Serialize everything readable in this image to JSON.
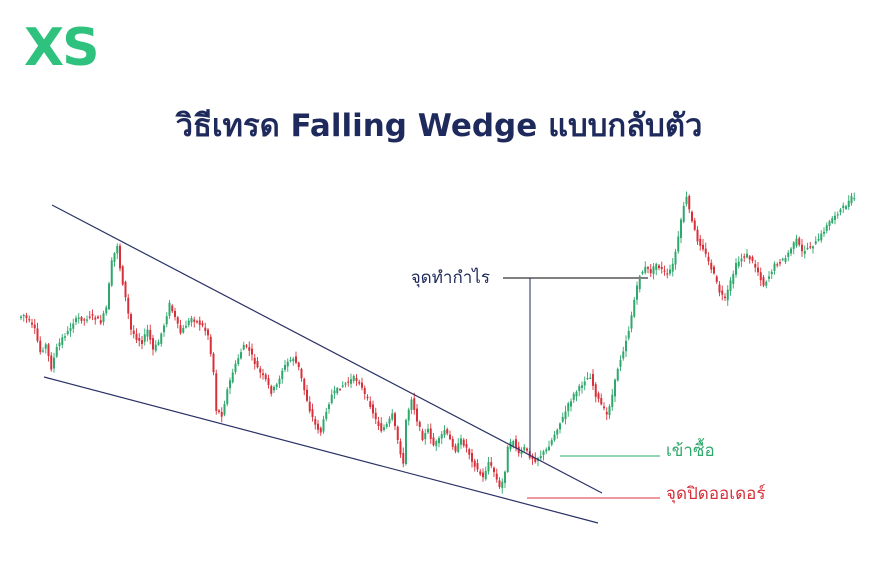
{
  "brand": {
    "logo_text": "XS",
    "logo_color": "#2ec27e"
  },
  "title": "วิธีเทรด Falling Wedge แบบกลับตัว",
  "colors": {
    "title": "#1f2a5c",
    "bull": "#2ea86b",
    "bear": "#d8303a",
    "wedge_line": "#2b3266",
    "take_profit": "#1f2a5c",
    "entry": "#2ea86b",
    "stop_loss": "#d8303a"
  },
  "chart_data": {
    "type": "line",
    "title": "",
    "xlabel": "",
    "ylabel": "",
    "grid": false,
    "price_path": [
      [
        0,
        318
      ],
      [
        2,
        315
      ],
      [
        4,
        322
      ],
      [
        6,
        330
      ],
      [
        8,
        352
      ],
      [
        10,
        345
      ],
      [
        12,
        368
      ],
      [
        14,
        348
      ],
      [
        16,
        338
      ],
      [
        18,
        332
      ],
      [
        20,
        322
      ],
      [
        22,
        318
      ],
      [
        24,
        320
      ],
      [
        26,
        316
      ],
      [
        28,
        318
      ],
      [
        30,
        322
      ],
      [
        32,
        308
      ],
      [
        34,
        262
      ],
      [
        36,
        245
      ],
      [
        37,
        268
      ],
      [
        39,
        298
      ],
      [
        41,
        330
      ],
      [
        43,
        338
      ],
      [
        45,
        342
      ],
      [
        47,
        330
      ],
      [
        49,
        350
      ],
      [
        51,
        342
      ],
      [
        53,
        325
      ],
      [
        55,
        304
      ],
      [
        57,
        318
      ],
      [
        59,
        333
      ],
      [
        61,
        325
      ],
      [
        63,
        318
      ],
      [
        65,
        322
      ],
      [
        67,
        326
      ],
      [
        69,
        335
      ],
      [
        71,
        372
      ],
      [
        72,
        410
      ],
      [
        74,
        415
      ],
      [
        76,
        390
      ],
      [
        78,
        372
      ],
      [
        80,
        358
      ],
      [
        82,
        345
      ],
      [
        84,
        350
      ],
      [
        86,
        363
      ],
      [
        88,
        373
      ],
      [
        90,
        380
      ],
      [
        92,
        392
      ],
      [
        94,
        385
      ],
      [
        96,
        370
      ],
      [
        98,
        362
      ],
      [
        100,
        358
      ],
      [
        102,
        368
      ],
      [
        104,
        390
      ],
      [
        106,
        410
      ],
      [
        108,
        425
      ],
      [
        110,
        432
      ],
      [
        112,
        410
      ],
      [
        114,
        395
      ],
      [
        116,
        390
      ],
      [
        118,
        385
      ],
      [
        120,
        382
      ],
      [
        122,
        378
      ],
      [
        124,
        382
      ],
      [
        126,
        395
      ],
      [
        128,
        405
      ],
      [
        130,
        420
      ],
      [
        132,
        430
      ],
      [
        134,
        425
      ],
      [
        136,
        415
      ],
      [
        138,
        440
      ],
      [
        140,
        465
      ],
      [
        141,
        420
      ],
      [
        143,
        398
      ],
      [
        145,
        420
      ],
      [
        147,
        438
      ],
      [
        149,
        430
      ],
      [
        151,
        445
      ],
      [
        153,
        440
      ],
      [
        155,
        430
      ],
      [
        157,
        440
      ],
      [
        159,
        450
      ],
      [
        161,
        440
      ],
      [
        163,
        448
      ],
      [
        165,
        460
      ],
      [
        167,
        470
      ],
      [
        169,
        478
      ],
      [
        171,
        462
      ],
      [
        173,
        472
      ],
      [
        175,
        488
      ],
      [
        176,
        482
      ],
      [
        177,
        470
      ],
      [
        178,
        448
      ],
      [
        180,
        440
      ],
      [
        182,
        455
      ],
      [
        184,
        448
      ],
      [
        186,
        456
      ],
      [
        188,
        460
      ],
      [
        190,
        455
      ],
      [
        192,
        450
      ],
      [
        194,
        440
      ],
      [
        196,
        428
      ],
      [
        198,
        418
      ],
      [
        200,
        405
      ],
      [
        202,
        395
      ],
      [
        204,
        388
      ],
      [
        206,
        380
      ],
      [
        208,
        376
      ],
      [
        210,
        395
      ],
      [
        212,
        405
      ],
      [
        214,
        415
      ],
      [
        216,
        395
      ],
      [
        218,
        368
      ],
      [
        220,
        350
      ],
      [
        222,
        330
      ],
      [
        224,
        300
      ],
      [
        226,
        275
      ],
      [
        228,
        268
      ],
      [
        230,
        272
      ],
      [
        232,
        264
      ],
      [
        234,
        270
      ],
      [
        236,
        275
      ],
      [
        238,
        265
      ],
      [
        240,
        238
      ],
      [
        242,
        205
      ],
      [
        243,
        198
      ],
      [
        245,
        222
      ],
      [
        247,
        240
      ],
      [
        249,
        248
      ],
      [
        251,
        262
      ],
      [
        253,
        275
      ],
      [
        255,
        292
      ],
      [
        257,
        300
      ],
      [
        259,
        282
      ],
      [
        261,
        265
      ],
      [
        263,
        258
      ],
      [
        265,
        255
      ],
      [
        267,
        262
      ],
      [
        269,
        272
      ],
      [
        271,
        285
      ],
      [
        273,
        276
      ],
      [
        275,
        265
      ],
      [
        277,
        262
      ],
      [
        279,
        258
      ],
      [
        281,
        248
      ],
      [
        283,
        240
      ],
      [
        285,
        252
      ],
      [
        287,
        248
      ],
      [
        289,
        245
      ],
      [
        291,
        240
      ],
      [
        293,
        230
      ],
      [
        295,
        222
      ],
      [
        297,
        215
      ],
      [
        299,
        210
      ],
      [
        301,
        205
      ],
      [
        303,
        198
      ]
    ],
    "annotations": {
      "take_profit": "จุดทำกำไร",
      "entry": "เข้าซื้อ",
      "stop_loss": "จุดปิดออเดอร์"
    }
  }
}
